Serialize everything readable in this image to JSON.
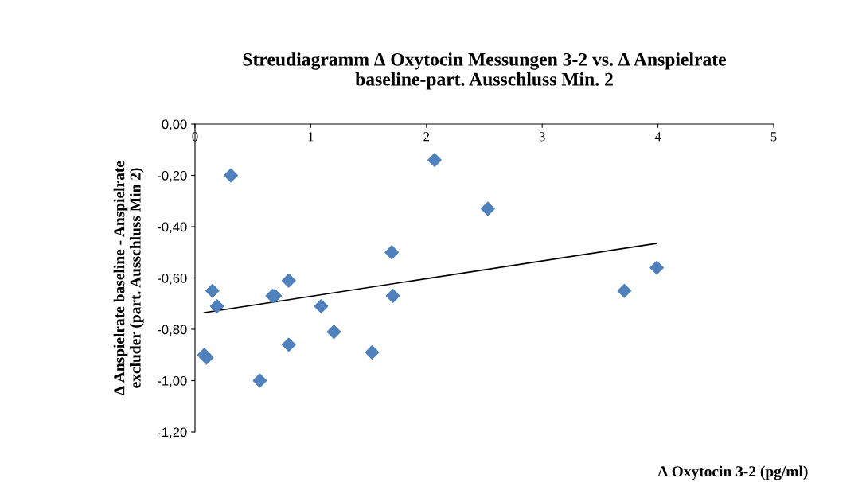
{
  "chart_data": {
    "type": "scatter",
    "title": "Streudiagramm ∆ Oxytocin Messungen 3-2 vs. ∆ Anspielrate\nbaseline-part. Ausschluss Min. 2",
    "xlabel": "∆ Oxytocin 3-2 (pg/ml)",
    "ylabel": "∆ Anspielrate baseline - Anspielrate\nexcluder (part. Ausschluss Min 2)",
    "xlim": [
      0,
      5
    ],
    "xticks": [
      0,
      1,
      2,
      3,
      4,
      5
    ],
    "ylim": [
      -1.2,
      0
    ],
    "yticks": [
      {
        "value": 0,
        "label": "0,00"
      },
      {
        "value": -0.2,
        "label": "-0,20"
      },
      {
        "value": -0.4,
        "label": "-0,40"
      },
      {
        "value": -0.6,
        "label": "-0,60"
      },
      {
        "value": -0.8,
        "label": "-0,80"
      },
      {
        "value": -1.0,
        "label": "-1,00"
      },
      {
        "value": -1.2,
        "label": "-1,20"
      }
    ],
    "grid": false,
    "legend": false,
    "series": [
      {
        "color": "#4f81bd",
        "marker": "diamond",
        "x": [
          0.08,
          0.1,
          0.15,
          0.19,
          0.31,
          0.56,
          0.67,
          0.69,
          0.81,
          0.81,
          1.09,
          1.2,
          1.53,
          1.7,
          1.71,
          2.07,
          2.53,
          3.71,
          3.99
        ],
        "values": [
          -0.9,
          -0.91,
          -0.65,
          -0.71,
          -0.2,
          -1.0,
          -0.67,
          -0.67,
          -0.61,
          -0.86,
          -0.71,
          -0.81,
          -0.89,
          -0.5,
          -0.67,
          -0.14,
          -0.33,
          -0.65,
          -0.56
        ]
      },
      {
        "type": "line",
        "color": "#000000",
        "marker": "none",
        "x": [
          0.08,
          3.99
        ],
        "values": [
          -0.735,
          -0.465
        ]
      }
    ]
  }
}
